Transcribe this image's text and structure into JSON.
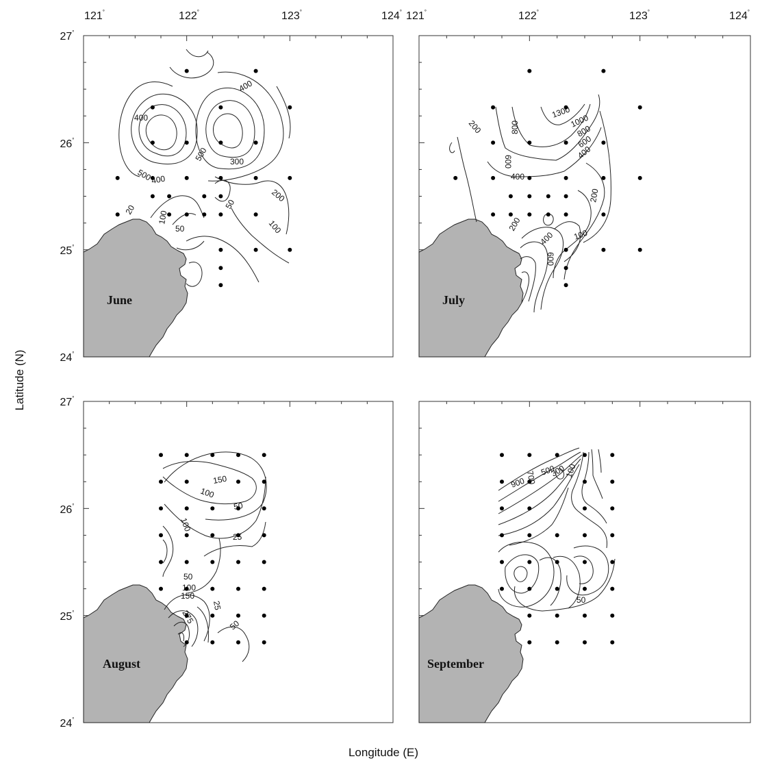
{
  "figure": {
    "xlabel": "Longitude (E)",
    "ylabel": "Latitude (N)"
  },
  "axes": {
    "lon_ticks": [
      "121",
      "122",
      "123",
      "124"
    ],
    "lat_ticks": [
      "27",
      "26",
      "25",
      "24"
    ],
    "degree_symbol": "°"
  },
  "colors": {
    "land": "#b3b3b3",
    "contour": "#222222",
    "station": "#000000"
  },
  "panels": [
    {
      "month": "June",
      "contour_labels": [
        "400",
        "400",
        "500",
        "400",
        "500",
        "300",
        "200",
        "100",
        "50",
        "100",
        "50",
        "20"
      ],
      "stations": [
        [
          122.0,
          26.67
        ],
        [
          122.67,
          26.67
        ],
        [
          121.67,
          26.33
        ],
        [
          122.33,
          26.33
        ],
        [
          123.0,
          26.33
        ],
        [
          121.67,
          26.0
        ],
        [
          122.0,
          26.0
        ],
        [
          122.33,
          26.0
        ],
        [
          122.67,
          26.0
        ],
        [
          121.33,
          25.67
        ],
        [
          121.67,
          25.67
        ],
        [
          122.0,
          25.67
        ],
        [
          122.33,
          25.67
        ],
        [
          122.67,
          25.67
        ],
        [
          123.0,
          25.67
        ],
        [
          121.67,
          25.5
        ],
        [
          121.83,
          25.5
        ],
        [
          122.17,
          25.5
        ],
        [
          122.33,
          25.5
        ],
        [
          121.83,
          25.33
        ],
        [
          122.0,
          25.33
        ],
        [
          122.17,
          25.33
        ],
        [
          122.33,
          25.33
        ],
        [
          122.67,
          25.33
        ],
        [
          121.33,
          25.33
        ],
        [
          122.33,
          25.0
        ],
        [
          122.67,
          25.0
        ],
        [
          123.0,
          25.0
        ],
        [
          122.33,
          24.83
        ],
        [
          122.33,
          24.67
        ]
      ]
    },
    {
      "month": "July",
      "contour_labels": [
        "200",
        "800",
        "600",
        "1300",
        "1000",
        "800",
        "600",
        "400",
        "400",
        "200",
        "200",
        "400",
        "600",
        "100"
      ],
      "stations": [
        [
          122.0,
          26.67
        ],
        [
          122.67,
          26.67
        ],
        [
          121.67,
          26.33
        ],
        [
          122.33,
          26.33
        ],
        [
          123.0,
          26.33
        ],
        [
          121.67,
          26.0
        ],
        [
          122.0,
          26.0
        ],
        [
          122.33,
          26.0
        ],
        [
          122.67,
          26.0
        ],
        [
          121.33,
          25.67
        ],
        [
          121.67,
          25.67
        ],
        [
          122.0,
          25.67
        ],
        [
          122.33,
          25.67
        ],
        [
          122.67,
          25.67
        ],
        [
          123.0,
          25.67
        ],
        [
          121.83,
          25.5
        ],
        [
          122.0,
          25.5
        ],
        [
          122.17,
          25.5
        ],
        [
          122.33,
          25.5
        ],
        [
          121.67,
          25.33
        ],
        [
          121.83,
          25.33
        ],
        [
          122.0,
          25.33
        ],
        [
          122.17,
          25.33
        ],
        [
          122.33,
          25.33
        ],
        [
          122.67,
          25.33
        ],
        [
          122.33,
          25.0
        ],
        [
          122.67,
          25.0
        ],
        [
          123.0,
          25.0
        ],
        [
          122.33,
          24.83
        ],
        [
          122.33,
          24.67
        ]
      ]
    },
    {
      "month": "August",
      "contour_labels": [
        "150",
        "100",
        "50",
        "100",
        "25",
        "50",
        "100",
        "150",
        "275",
        "25",
        "50"
      ],
      "stations": [
        [
          121.75,
          26.5
        ],
        [
          122.0,
          26.5
        ],
        [
          122.25,
          26.5
        ],
        [
          122.5,
          26.5
        ],
        [
          122.75,
          26.5
        ],
        [
          121.75,
          26.25
        ],
        [
          122.0,
          26.25
        ],
        [
          122.5,
          26.25
        ],
        [
          122.75,
          26.25
        ],
        [
          121.75,
          26.0
        ],
        [
          122.0,
          26.0
        ],
        [
          122.25,
          26.0
        ],
        [
          122.5,
          26.0
        ],
        [
          122.75,
          26.0
        ],
        [
          121.75,
          25.75
        ],
        [
          122.0,
          25.75
        ],
        [
          122.25,
          25.75
        ],
        [
          122.5,
          25.75
        ],
        [
          122.75,
          25.75
        ],
        [
          121.75,
          25.5
        ],
        [
          122.0,
          25.5
        ],
        [
          122.25,
          25.5
        ],
        [
          122.5,
          25.5
        ],
        [
          122.75,
          25.5
        ],
        [
          121.75,
          25.25
        ],
        [
          122.0,
          25.25
        ],
        [
          122.25,
          25.25
        ],
        [
          122.5,
          25.25
        ],
        [
          122.75,
          25.25
        ],
        [
          122.0,
          25.0
        ],
        [
          122.25,
          25.0
        ],
        [
          122.5,
          25.0
        ],
        [
          122.75,
          25.0
        ],
        [
          122.0,
          24.75
        ],
        [
          122.25,
          24.75
        ],
        [
          122.5,
          24.75
        ],
        [
          122.75,
          24.75
        ]
      ]
    },
    {
      "month": "September",
      "contour_labels": [
        "700",
        "500",
        "300",
        "100",
        "900",
        "50"
      ],
      "stations": [
        [
          121.75,
          26.5
        ],
        [
          122.0,
          26.5
        ],
        [
          122.25,
          26.5
        ],
        [
          122.5,
          26.5
        ],
        [
          122.75,
          26.5
        ],
        [
          121.75,
          26.25
        ],
        [
          122.0,
          26.25
        ],
        [
          122.5,
          26.25
        ],
        [
          122.75,
          26.25
        ],
        [
          121.75,
          26.0
        ],
        [
          122.0,
          26.0
        ],
        [
          122.5,
          26.0
        ],
        [
          122.75,
          26.0
        ],
        [
          121.75,
          25.75
        ],
        [
          122.0,
          25.75
        ],
        [
          122.25,
          25.75
        ],
        [
          122.5,
          25.75
        ],
        [
          122.75,
          25.75
        ],
        [
          121.75,
          25.5
        ],
        [
          122.0,
          25.5
        ],
        [
          122.25,
          25.5
        ],
        [
          122.5,
          25.5
        ],
        [
          122.75,
          25.5
        ],
        [
          121.75,
          25.25
        ],
        [
          122.0,
          25.25
        ],
        [
          122.25,
          25.25
        ],
        [
          122.5,
          25.25
        ],
        [
          122.75,
          25.25
        ],
        [
          122.0,
          25.0
        ],
        [
          122.25,
          25.0
        ],
        [
          122.5,
          25.0
        ],
        [
          122.75,
          25.0
        ],
        [
          122.0,
          24.75
        ],
        [
          122.25,
          24.75
        ],
        [
          122.5,
          24.75
        ],
        [
          122.75,
          24.75
        ]
      ]
    }
  ]
}
